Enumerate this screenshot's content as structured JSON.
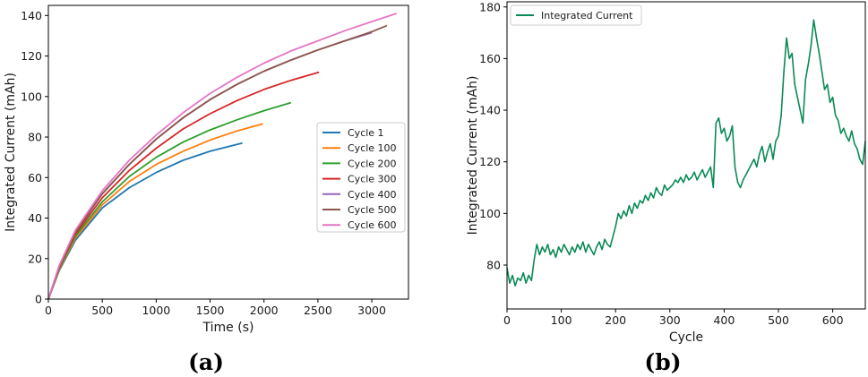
{
  "panels": [
    {
      "label": "(a)"
    },
    {
      "label": "(b)"
    }
  ],
  "chart_data": [
    {
      "type": "line",
      "title": "",
      "xlabel": "Time (s)",
      "ylabel": "Integrated Current (mAh)",
      "xlim": [
        0,
        3340
      ],
      "ylim": [
        0,
        145
      ],
      "xticks": [
        0,
        500,
        1000,
        1500,
        2000,
        2500,
        3000
      ],
      "yticks": [
        0,
        20,
        40,
        60,
        80,
        100,
        120,
        140
      ],
      "legend_position": "center-right",
      "grid": false,
      "series": [
        {
          "name": "Cycle 1",
          "color": "#1f77b4",
          "x": [
            0,
            100,
            250,
            500,
            750,
            1000,
            1250,
            1500,
            1800
          ],
          "y": [
            0,
            14,
            29,
            45,
            55,
            62.5,
            68.5,
            73,
            77
          ]
        },
        {
          "name": "Cycle 100",
          "color": "#ff7f0e",
          "x": [
            0,
            100,
            250,
            500,
            750,
            1000,
            1250,
            1500,
            1750,
            1990
          ],
          "y": [
            0,
            14.5,
            30,
            46.5,
            58,
            66.5,
            73,
            78.5,
            83,
            86.5
          ]
        },
        {
          "name": "Cycle 200",
          "color": "#2ca02c",
          "x": [
            0,
            100,
            250,
            500,
            750,
            1000,
            1250,
            1500,
            1750,
            2000,
            2250
          ],
          "y": [
            0,
            15,
            31,
            48,
            60.5,
            70,
            77.5,
            83.5,
            88.5,
            93,
            97
          ]
        },
        {
          "name": "Cycle 300",
          "color": "#d62728",
          "x": [
            0,
            100,
            250,
            500,
            750,
            1000,
            1250,
            1500,
            1750,
            2000,
            2250,
            2510
          ],
          "y": [
            0,
            15.5,
            32,
            50,
            63.5,
            74.5,
            84,
            91.5,
            98,
            103.5,
            108,
            112
          ]
        },
        {
          "name": "Cycle 400",
          "color": "#9467bd",
          "x": [
            0,
            100,
            250,
            500,
            750,
            1000,
            1250,
            1500,
            1750,
            2000,
            2250,
            2500,
            2750,
            3000
          ],
          "y": [
            0,
            16,
            33,
            52,
            66.5,
            79,
            89.5,
            98.5,
            106,
            112.5,
            118,
            123,
            127.5,
            131.5
          ]
        },
        {
          "name": "Cycle 500",
          "color": "#8c564b",
          "x": [
            0,
            100,
            250,
            500,
            750,
            1000,
            1250,
            1500,
            1750,
            2000,
            2250,
            2500,
            2750,
            3000,
            3140
          ],
          "y": [
            0,
            16,
            33,
            52,
            66.5,
            79,
            89.5,
            98.5,
            106,
            112.5,
            118,
            123,
            127.5,
            132,
            135
          ]
        },
        {
          "name": "Cycle 600",
          "color": "#e377c2",
          "x": [
            0,
            100,
            250,
            500,
            750,
            1000,
            1250,
            1500,
            1750,
            2000,
            2250,
            2500,
            2750,
            3000,
            3230
          ],
          "y": [
            0,
            16.5,
            34,
            53.5,
            68.5,
            81,
            92,
            101.5,
            109.5,
            116.5,
            122.5,
            127.5,
            132.5,
            137,
            141
          ]
        }
      ]
    },
    {
      "type": "line",
      "title": "",
      "xlabel": "Cycle",
      "ylabel": "Integrated Current (mAh)",
      "xlim": [
        0,
        660
      ],
      "ylim": [
        63,
        182
      ],
      "xticks": [
        0,
        100,
        200,
        300,
        400,
        500,
        600
      ],
      "yticks": [
        80,
        100,
        120,
        140,
        160,
        180
      ],
      "legend_position": "top-left",
      "grid": false,
      "series": [
        {
          "name": "Integrated Current",
          "color": "#0a8a55",
          "x": [
            0,
            5,
            10,
            15,
            20,
            25,
            30,
            35,
            40,
            45,
            50,
            55,
            60,
            65,
            70,
            75,
            80,
            85,
            90,
            95,
            100,
            105,
            110,
            115,
            120,
            125,
            130,
            135,
            140,
            145,
            150,
            155,
            160,
            165,
            170,
            175,
            180,
            185,
            190,
            195,
            200,
            205,
            210,
            215,
            220,
            225,
            230,
            235,
            240,
            245,
            250,
            255,
            260,
            265,
            270,
            275,
            280,
            285,
            290,
            295,
            300,
            305,
            310,
            315,
            320,
            325,
            330,
            335,
            340,
            345,
            350,
            355,
            360,
            365,
            370,
            375,
            380,
            385,
            390,
            395,
            400,
            405,
            410,
            415,
            420,
            425,
            430,
            435,
            440,
            445,
            450,
            455,
            460,
            465,
            470,
            475,
            480,
            485,
            490,
            495,
            500,
            505,
            510,
            515,
            520,
            525,
            530,
            535,
            540,
            545,
            550,
            555,
            560,
            565,
            570,
            575,
            580,
            585,
            590,
            595,
            600,
            605,
            610,
            615,
            620,
            625,
            630,
            635,
            640,
            645,
            650,
            655,
            660
          ],
          "y": [
            79,
            73,
            76,
            72,
            75,
            74,
            77,
            73,
            76,
            74,
            82,
            88,
            84,
            87,
            85,
            88,
            84,
            86,
            83,
            87,
            85,
            88,
            86,
            84,
            87,
            85,
            88,
            86,
            89,
            85,
            88,
            86,
            84,
            87,
            89,
            86,
            90,
            88,
            87,
            91,
            95,
            100,
            98,
            101,
            99,
            103,
            100,
            104,
            102,
            105,
            104,
            107,
            105,
            108,
            106,
            110,
            108,
            107,
            111,
            109,
            110,
            111,
            113,
            112,
            114,
            112,
            115,
            113,
            114,
            116,
            113,
            115,
            117,
            114,
            116,
            118,
            110,
            135,
            137,
            131,
            133,
            128,
            130,
            134,
            118,
            112,
            110,
            113,
            115,
            117,
            119,
            121,
            118,
            123,
            126,
            120,
            124,
            127,
            121,
            128,
            130,
            138,
            155,
            168,
            160,
            162,
            150,
            145,
            140,
            135,
            152,
            158,
            165,
            175,
            168,
            162,
            155,
            148,
            150,
            143,
            145,
            138,
            136,
            131,
            133,
            130,
            128,
            132,
            127,
            125,
            121,
            119,
            128
          ]
        }
      ]
    }
  ]
}
